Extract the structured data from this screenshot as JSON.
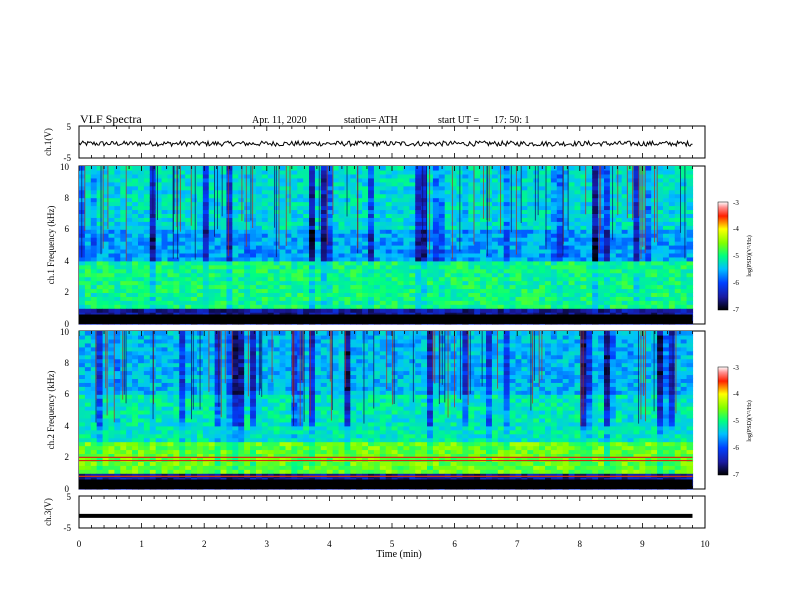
{
  "header": {
    "title": "VLF  Spectra",
    "date": "Apr. 11, 2020",
    "station": "station= ATH",
    "start_label": "start  UT  =",
    "start_time": "17: 50: 1"
  },
  "chart_data": [
    {
      "type": "line",
      "panel": "ch1-waveform",
      "ylabel": "ch.1(V)",
      "ylim": [
        -5,
        5
      ],
      "yticks": [
        "5",
        "-5"
      ],
      "series": [
        {
          "x_range_min": [
            0,
            9.8
          ],
          "mean": -0.5,
          "amplitude": 0.8
        }
      ]
    },
    {
      "type": "heatmap",
      "panel": "ch1-spectrogram",
      "ylabel": "ch.1  Frequency  (kHz)",
      "ylim_khz": [
        0,
        10
      ],
      "yticks": [
        "0",
        "2",
        "4",
        "6",
        "8",
        "10"
      ],
      "colorbar": {
        "label": "log(PSD)(V²/Hz)",
        "range": [
          -7,
          -3
        ],
        "ticks": [
          "-3",
          "-4",
          "-5",
          "-6",
          "-7"
        ]
      },
      "bands": [
        {
          "from_khz": 1.0,
          "to_khz": 4.0,
          "log_psd": -5.0
        },
        {
          "from_khz": 4.0,
          "to_khz": 6.0,
          "log_psd": -5.6
        },
        {
          "from_khz": 6.0,
          "to_khz": 10.0,
          "log_psd": -5.3
        }
      ]
    },
    {
      "type": "heatmap",
      "panel": "ch2-spectrogram",
      "ylabel": "ch.2  Frequency  (kHz)",
      "ylim_khz": [
        0,
        10
      ],
      "yticks": [
        "0",
        "2",
        "4",
        "6",
        "8",
        "10"
      ],
      "colorbar": {
        "label": "log(PSD)(V²/Hz)",
        "range": [
          -7,
          -3
        ],
        "ticks": [
          "-3",
          "-4",
          "-5",
          "-6",
          "-7"
        ]
      },
      "bands": [
        {
          "from_khz": 1.0,
          "to_khz": 3.0,
          "log_psd": -4.6
        },
        {
          "from_khz": 3.0,
          "to_khz": 6.0,
          "log_psd": -5.2
        },
        {
          "from_khz": 6.0,
          "to_khz": 10.0,
          "log_psd": -5.5
        }
      ],
      "lines_khz": [
        0.8,
        1.8,
        2.0
      ]
    },
    {
      "type": "line",
      "panel": "ch3-waveform",
      "ylabel": "ch.3(V)",
      "ylim": [
        -5,
        5
      ],
      "yticks": [
        "5",
        "-5"
      ],
      "series": [
        {
          "x_range_min": [
            0,
            9.8
          ],
          "value": -1.2
        }
      ]
    }
  ],
  "x_axis": {
    "label": "Time  (min)",
    "range": [
      0,
      10
    ],
    "ticks": [
      "0",
      "1",
      "2",
      "3",
      "4",
      "5",
      "6",
      "7",
      "8",
      "9",
      "10"
    ]
  }
}
